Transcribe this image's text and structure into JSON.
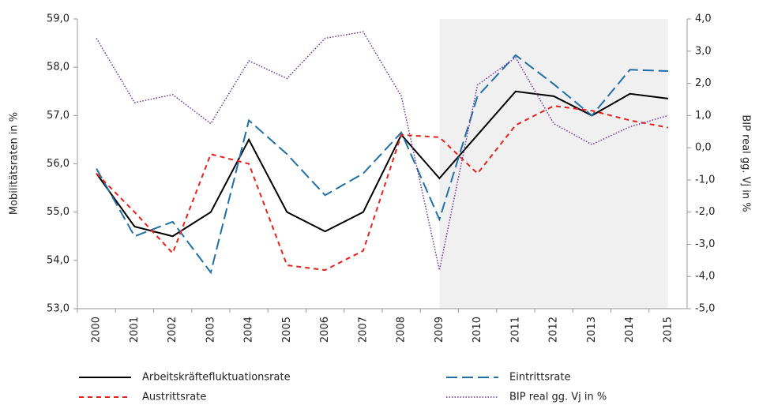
{
  "chart_data": {
    "type": "line",
    "y_label": "Mobilitätsraten in %",
    "y2_label": "BIP real gg. Vj in %",
    "categories": [
      "2000",
      "2001",
      "2002",
      "2003",
      "2004",
      "2005",
      "2006",
      "2007",
      "2008",
      "2009",
      "2010",
      "2011",
      "2012",
      "2013",
      "2014",
      "2015"
    ],
    "shaded_range": [
      "2009",
      "2015"
    ],
    "series": [
      {
        "name": "Arbeitskräftefluktuationsrate",
        "color": "#000000",
        "dash": "solid",
        "values": [
          55.8,
          54.7,
          54.5,
          55.0,
          56.5,
          55.0,
          54.6,
          55.0,
          56.6,
          55.7,
          56.6,
          57.5,
          57.4,
          57.0,
          57.45,
          57.35
        ]
      },
      {
        "name": "Eintrittsrate",
        "color": "#1f6fa8",
        "dash": "long",
        "values": [
          55.9,
          54.5,
          54.8,
          53.75,
          56.9,
          56.2,
          55.35,
          55.8,
          56.65,
          54.85,
          57.4,
          58.25,
          57.65,
          57.0,
          57.95,
          57.92
        ]
      },
      {
        "name": "Austrittsrate",
        "color": "#e8211b",
        "dash": "short",
        "values": [
          55.8,
          55.0,
          54.15,
          56.2,
          56.0,
          53.9,
          53.8,
          54.2,
          56.6,
          56.55,
          55.8,
          56.8,
          57.2,
          57.1,
          56.9,
          56.75
        ]
      },
      {
        "name": "BIP real gg. Vj in %",
        "color": "#7030a0",
        "dash": "dotted",
        "axis": "y2",
        "values": [
          3.4,
          1.4,
          1.65,
          0.75,
          2.7,
          2.15,
          3.4,
          3.6,
          1.6,
          -3.8,
          1.95,
          2.8,
          0.75,
          0.1,
          0.65,
          1.0
        ]
      }
    ],
    "ylim": [
      53,
      59
    ],
    "yticks": [
      {
        "value": 53,
        "label": "53,0"
      },
      {
        "value": 54,
        "label": "54,0"
      },
      {
        "value": 55,
        "label": "55,0"
      },
      {
        "value": 56,
        "label": "56,0"
      },
      {
        "value": 57,
        "label": "57,0"
      },
      {
        "value": 58,
        "label": "58,0"
      },
      {
        "value": 59,
        "label": "59,0"
      }
    ],
    "y2lim": [
      -5,
      4
    ],
    "y2ticks": [
      {
        "value": -5,
        "label": "-5,0"
      },
      {
        "value": -4,
        "label": "-4,0"
      },
      {
        "value": -3,
        "label": "-3,0"
      },
      {
        "value": -2,
        "label": "-2,0"
      },
      {
        "value": -1,
        "label": "-1,0"
      },
      {
        "value": 0,
        "label": "0,0"
      },
      {
        "value": 1,
        "label": "1,0"
      },
      {
        "value": 2,
        "label": "2,0"
      },
      {
        "value": 3,
        "label": "3,0"
      },
      {
        "value": 4,
        "label": "4,0"
      }
    ]
  }
}
